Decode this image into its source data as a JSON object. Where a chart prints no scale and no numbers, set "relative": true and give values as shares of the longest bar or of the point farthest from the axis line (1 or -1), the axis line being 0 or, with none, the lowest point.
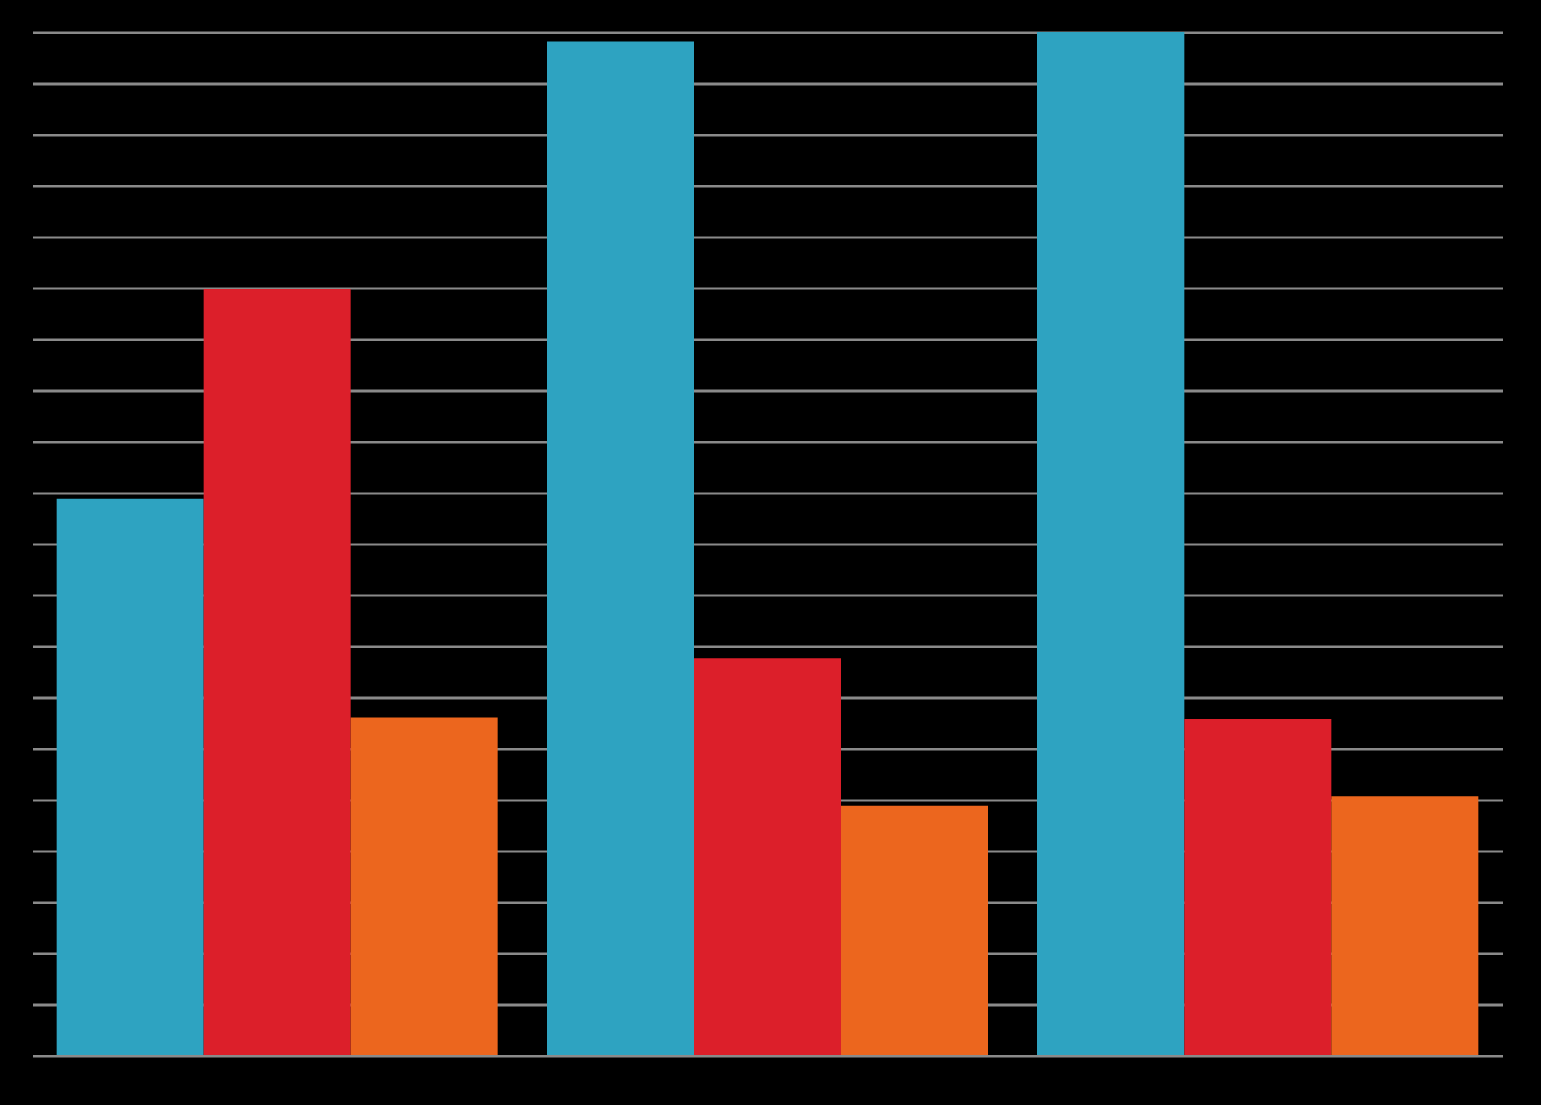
{
  "chart_data": {
    "type": "bar",
    "relative": true,
    "categories": [
      null,
      null,
      null
    ],
    "series": [
      {
        "color": "#2ea3c1",
        "values": [
          0.544,
          0.991,
          1
        ]
      },
      {
        "color": "#dc1f2a",
        "values": [
          0.749,
          0.388,
          0.329
        ]
      },
      {
        "color": "#ec661e",
        "values": [
          0.33,
          0.244,
          0.253
        ]
      }
    ],
    "grid": "y",
    "legend": false
  }
}
